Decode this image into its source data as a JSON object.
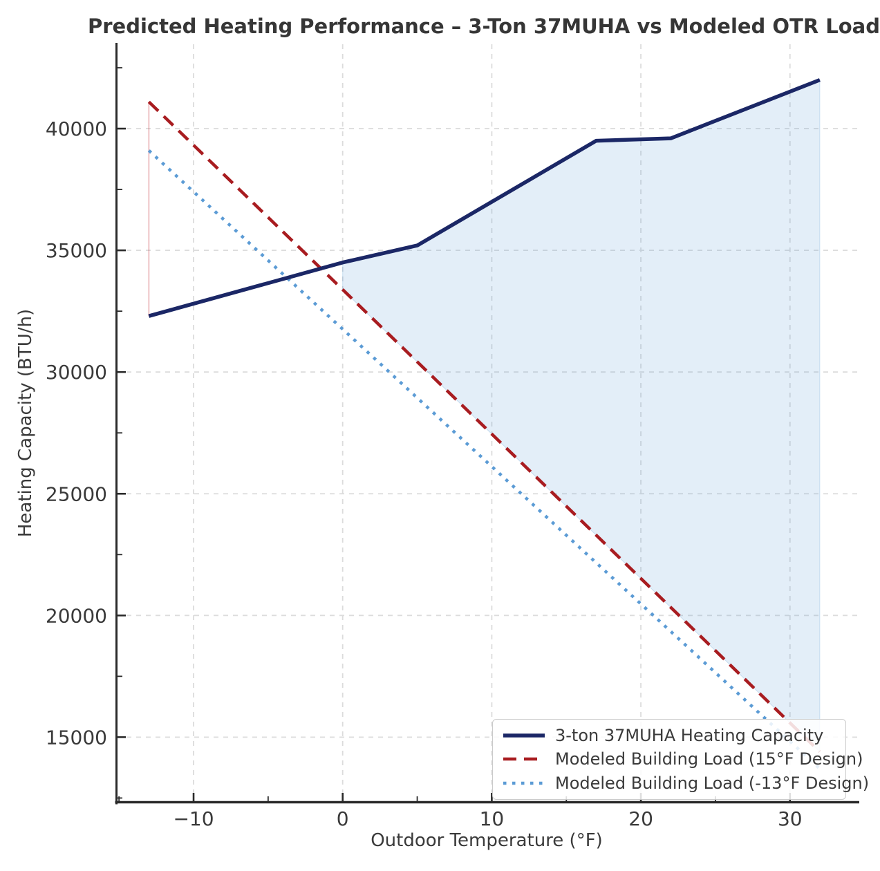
{
  "chart_data": {
    "type": "line",
    "title": "Predicted Heating Performance – 3-Ton 37MUHA vs Modeled OTR Load",
    "xlabel": "Outdoor Temperature (°F)",
    "ylabel": "Heating Capacity (BTU/h)",
    "xlim": [
      -15.24,
      34.6
    ],
    "ylim": [
      12285,
      43466
    ],
    "grid": "major-only, dashed, both axes",
    "legend_position": "lower right",
    "x_ticks": {
      "values": [
        -10,
        0,
        10,
        20,
        30
      ],
      "labels": [
        "−10",
        "0",
        "10",
        "20",
        "30"
      ]
    },
    "x_ticks_minor": [
      -15,
      -5,
      5,
      15,
      25
    ],
    "y_ticks": {
      "values": [
        15000,
        20000,
        25000,
        30000,
        35000,
        40000
      ],
      "labels": [
        "15000",
        "20000",
        "25000",
        "30000",
        "35000",
        "40000"
      ]
    },
    "y_ticks_minor": [
      12500,
      17500,
      22500,
      27500,
      32500,
      37500,
      42500
    ],
    "series": [
      {
        "name": "3-ton 37MUHA Heating Capacity",
        "style": "solid",
        "color": "#1b2766",
        "width": 5.5,
        "x": [
          -13,
          0,
          5,
          17,
          22,
          32
        ],
        "y": [
          32300,
          34500,
          35200,
          39500,
          39600,
          42000
        ]
      },
      {
        "name": "Modeled Building Load (15°F Design)",
        "style": "dashed",
        "color": "#a81c20",
        "width": 4.5,
        "x": [
          -13,
          32
        ],
        "y": [
          41100,
          14400
        ]
      },
      {
        "name": "Modeled Building Load (-13°F Design)",
        "style": "dotted",
        "color": "#5b9bd5",
        "width": 4.5,
        "x": [
          -13,
          32
        ],
        "y": [
          39100,
          13700
        ]
      }
    ],
    "fills": [
      {
        "name": "capacity-surplus-region",
        "description": "area between heating capacity and 15°F-design load where capacity exceeds load",
        "x_range": [
          0,
          32
        ],
        "color": "rgba(91,155,213,0.17)"
      },
      {
        "name": "capacity-deficit-edge",
        "description": "degenerate fill (vertical edge) at -13°F where load exceeds capacity",
        "x": -13,
        "y_from": 32300,
        "y_to": 41100,
        "color": "rgba(200,60,70,0.30)"
      }
    ],
    "colors": {
      "background": "#ffffff",
      "grid": "#dcdcdc",
      "spine": "#2a2a2a",
      "tick_text": "#3a3a3a",
      "title_text": "#363636",
      "legend_border": "#cbcbcb"
    }
  }
}
